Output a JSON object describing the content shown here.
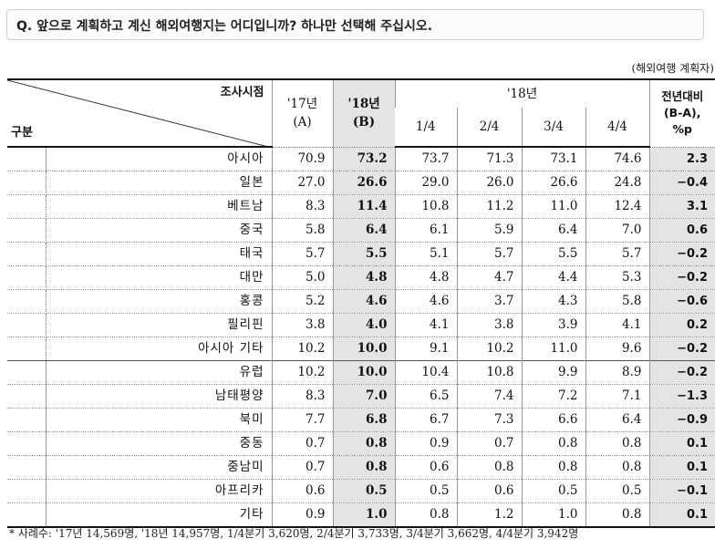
{
  "question": "Q. 앞으로 계획하고 계신 해외여행지는 어디입니까? 하나만 선택해 주십시오.",
  "unit": "(해외여행 계획자)",
  "header": {
    "corner_top": "조사시점",
    "corner_bottom": "구분",
    "col_17": "'17년",
    "col_17_sub": "(A)",
    "col_18": "'18년",
    "col_18_sub": "(B)",
    "group_18": "'18년",
    "quarters": [
      "1/4",
      "2/4",
      "3/4",
      "4/4"
    ],
    "change_line1": "전년대비",
    "change_line2": "(B-A),",
    "change_line3": "%p"
  },
  "rows": [
    {
      "label": "아시아",
      "y17": "70.9",
      "y18": "73.2",
      "q1": "73.7",
      "q2": "71.3",
      "q3": "73.1",
      "q4": "74.6",
      "chg": "2.3"
    },
    {
      "label": "일본",
      "y17": "27.0",
      "y18": "26.6",
      "q1": "29.0",
      "q2": "26.0",
      "q3": "26.6",
      "q4": "24.8",
      "chg": "−0.4"
    },
    {
      "label": "베트남",
      "y17": "8.3",
      "y18": "11.4",
      "q1": "10.8",
      "q2": "11.2",
      "q3": "11.0",
      "q4": "12.4",
      "chg": "3.1"
    },
    {
      "label": "중국",
      "y17": "5.8",
      "y18": "6.4",
      "q1": "6.1",
      "q2": "5.9",
      "q3": "6.4",
      "q4": "7.0",
      "chg": "0.6"
    },
    {
      "label": "태국",
      "y17": "5.7",
      "y18": "5.5",
      "q1": "5.1",
      "q2": "5.7",
      "q3": "5.5",
      "q4": "5.7",
      "chg": "−0.2"
    },
    {
      "label": "대만",
      "y17": "5.0",
      "y18": "4.8",
      "q1": "4.8",
      "q2": "4.7",
      "q3": "4.4",
      "q4": "5.3",
      "chg": "−0.2"
    },
    {
      "label": "홍콩",
      "y17": "5.2",
      "y18": "4.6",
      "q1": "4.6",
      "q2": "3.7",
      "q3": "4.3",
      "q4": "5.8",
      "chg": "−0.6"
    },
    {
      "label": "필리핀",
      "y17": "3.8",
      "y18": "4.0",
      "q1": "4.1",
      "q2": "3.8",
      "q3": "3.9",
      "q4": "4.1",
      "chg": "0.2"
    },
    {
      "label": "아시아 기타",
      "y17": "10.2",
      "y18": "10.0",
      "q1": "9.1",
      "q2": "10.2",
      "q3": "11.0",
      "q4": "9.6",
      "chg": "−0.2"
    },
    {
      "label": "유럽",
      "y17": "10.2",
      "y18": "10.0",
      "q1": "10.4",
      "q2": "10.8",
      "q3": "9.9",
      "q4": "8.9",
      "chg": "−0.2"
    },
    {
      "label": "남태평양",
      "y17": "8.3",
      "y18": "7.0",
      "q1": "6.5",
      "q2": "7.4",
      "q3": "7.2",
      "q4": "7.1",
      "chg": "−1.3"
    },
    {
      "label": "북미",
      "y17": "7.7",
      "y18": "6.8",
      "q1": "6.7",
      "q2": "7.3",
      "q3": "6.6",
      "q4": "6.4",
      "chg": "−0.9"
    },
    {
      "label": "중동",
      "y17": "0.7",
      "y18": "0.8",
      "q1": "0.9",
      "q2": "0.7",
      "q3": "0.8",
      "q4": "0.8",
      "chg": "0.1"
    },
    {
      "label": "중남미",
      "y17": "0.7",
      "y18": "0.8",
      "q1": "0.6",
      "q2": "0.8",
      "q3": "0.8",
      "q4": "0.8",
      "chg": "0.1"
    },
    {
      "label": "아프리카",
      "y17": "0.6",
      "y18": "0.5",
      "q1": "0.5",
      "q2": "0.6",
      "q3": "0.5",
      "q4": "0.5",
      "chg": "−0.1"
    },
    {
      "label": "기타",
      "y17": "0.9",
      "y18": "1.0",
      "q1": "0.8",
      "q2": "1.2",
      "q3": "1.0",
      "q4": "0.8",
      "chg": "0.1"
    }
  ],
  "footnote": "* 사례수: '17년 14,569명, '18년 14,957명, 1/4분기 3,620명, 2/4분기 3,733명, 3/4분기 3,662명, 4/4분기 3,942명"
}
